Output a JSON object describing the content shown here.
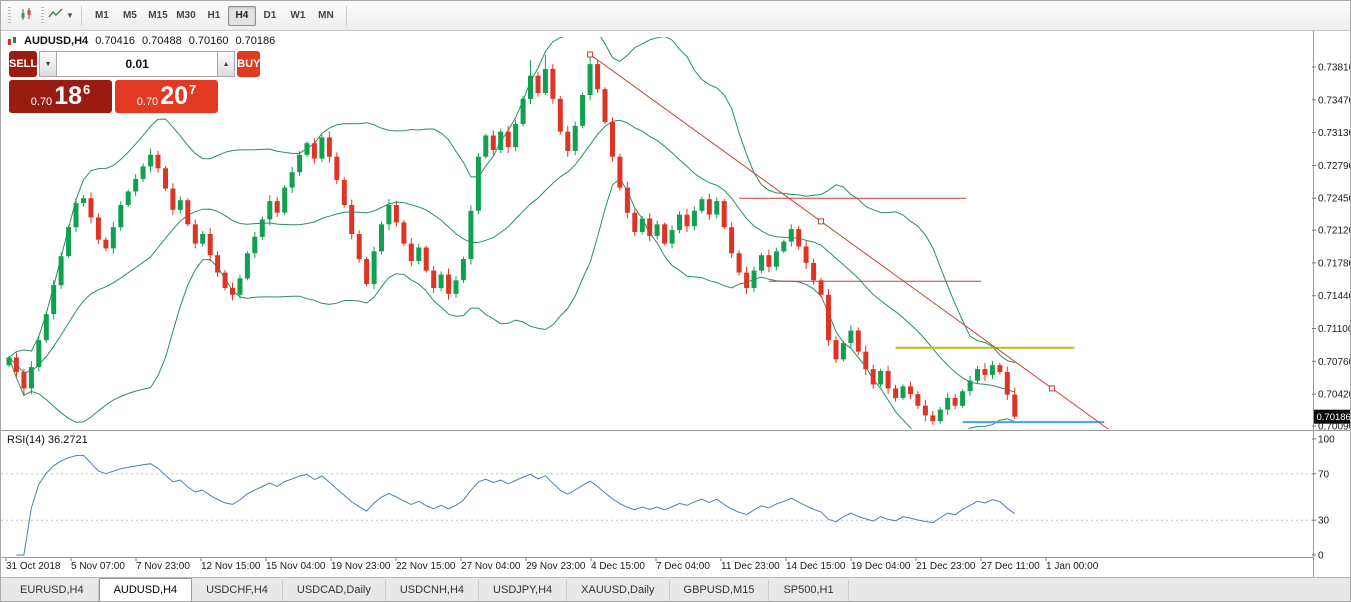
{
  "toolbar": {
    "timeframes": [
      "M1",
      "M5",
      "M15",
      "M30",
      "H1",
      "H4",
      "D1",
      "W1",
      "MN"
    ],
    "active_timeframe": "H4"
  },
  "symbol_strip": {
    "symbol": "AUDUSD,H4",
    "open": "0.70416",
    "high": "0.70488",
    "low": "0.70160",
    "close": "0.70186"
  },
  "one_click": {
    "sell_label": "SELL",
    "buy_label": "BUY",
    "volume": "0.01",
    "sell_price": {
      "big": "0.70",
      "mid": "18",
      "sup": "6",
      "full": "0.70186"
    },
    "buy_price": {
      "big": "0.70",
      "mid": "20",
      "sup": "7",
      "full": "0.70207"
    },
    "sell_color": "#9a1c10",
    "buy_color": "#e23a22"
  },
  "price_axis": {
    "labels": [
      "0.73810",
      "0.73470",
      "0.73130",
      "0.72790",
      "0.72450",
      "0.72120",
      "0.71780",
      "0.71440",
      "0.71100",
      "0.70760",
      "0.70420",
      "0.70090"
    ],
    "current": "0.70186"
  },
  "time_axis": {
    "labels": [
      "31 Oct 2018",
      "5 Nov 07:00",
      "7 Nov 23:00",
      "12 Nov 15:00",
      "15 Nov 04:00",
      "19 Nov 23:00",
      "22 Nov 15:00",
      "27 Nov 04:00",
      "29 Nov 23:00",
      "4 Dec 15:00",
      "7 Dec 04:00",
      "11 Dec 23:00",
      "14 Dec 15:00",
      "19 Dec 04:00",
      "21 Dec 23:00",
      "27 Dec 11:00",
      "1 Jan 00:00"
    ]
  },
  "rsi_panel": {
    "label": "RSI(14)",
    "value": "36.2721",
    "scale": [
      "100",
      "70",
      "30",
      "0"
    ]
  },
  "tabs": [
    {
      "label": "EURUSD,H4",
      "active": false
    },
    {
      "label": "AUDUSD,H4",
      "active": true
    },
    {
      "label": "USDCHF,H4",
      "active": false
    },
    {
      "label": "USDCAD,Daily",
      "active": false
    },
    {
      "label": "USDCNH,H4",
      "active": false
    },
    {
      "label": "USDJPY,H4",
      "active": false
    },
    {
      "label": "XAUUSD,Daily",
      "active": false
    },
    {
      "label": "GBPUSD,M15",
      "active": false
    },
    {
      "label": "SP500,H1",
      "active": false
    }
  ],
  "chart_data": {
    "type": "candlestick",
    "title": "AUDUSD,H4",
    "y_axis": {
      "top": 0.7381,
      "bottom": 0.7009
    },
    "first_open": 0.7072,
    "closes": [
      0.708,
      0.7065,
      0.7048,
      0.707,
      0.7098,
      0.7125,
      0.7155,
      0.7185,
      0.7215,
      0.724,
      0.7245,
      0.7225,
      0.7202,
      0.7193,
      0.7215,
      0.7238,
      0.7252,
      0.7265,
      0.7278,
      0.729,
      0.7276,
      0.7255,
      0.7233,
      0.7243,
      0.7218,
      0.7198,
      0.7208,
      0.7186,
      0.7168,
      0.7152,
      0.7145,
      0.7162,
      0.7188,
      0.7205,
      0.7223,
      0.7242,
      0.723,
      0.7256,
      0.7272,
      0.729,
      0.7302,
      0.7286,
      0.7308,
      0.7288,
      0.7264,
      0.7238,
      0.7208,
      0.7182,
      0.7156,
      0.719,
      0.7218,
      0.7238,
      0.722,
      0.7198,
      0.718,
      0.7194,
      0.717,
      0.7152,
      0.7166,
      0.7146,
      0.716,
      0.7182,
      0.7232,
      0.7288,
      0.731,
      0.7295,
      0.7314,
      0.7298,
      0.7322,
      0.7348,
      0.7372,
      0.7354,
      0.7379,
      0.7348,
      0.7314,
      0.7294,
      0.732,
      0.7352,
      0.7384,
      0.7358,
      0.7324,
      0.7288,
      0.7256,
      0.723,
      0.721,
      0.7224,
      0.7206,
      0.7218,
      0.7198,
      0.7212,
      0.7228,
      0.7216,
      0.7232,
      0.7244,
      0.7228,
      0.7242,
      0.7215,
      0.7188,
      0.7168,
      0.7152,
      0.717,
      0.7186,
      0.7174,
      0.719,
      0.72,
      0.7213,
      0.7195,
      0.7178,
      0.716,
      0.7145,
      0.7098,
      0.7078,
      0.7095,
      0.7108,
      0.7086,
      0.7068,
      0.7052,
      0.7066,
      0.7048,
      0.7038,
      0.705,
      0.7042,
      0.703,
      0.702,
      0.7014,
      0.7026,
      0.7038,
      0.703,
      0.7045,
      0.7056,
      0.7068,
      0.7062,
      0.7072,
      0.7065,
      0.70416,
      0.70186
    ],
    "overrides": {
      "2": {
        "l": 0.704
      },
      "70": {
        "h": 0.7388
      },
      "72": {
        "h": 0.7394
      },
      "78": {
        "h": 0.7394
      },
      "124": {
        "l": 0.701
      },
      "135": {
        "h": 0.70488,
        "l": 0.7016
      }
    },
    "colors": {
      "bull": "#10a04f",
      "bear": "#de3425"
    },
    "indicators": {
      "bollinger": {
        "period": 20,
        "deviation": 1.8,
        "color": "#27915f"
      },
      "rsi": {
        "period": 14,
        "color": "#4d7fba",
        "current": 36.2721
      }
    },
    "objects": {
      "trendline": {
        "p1": {
          "bar": 78,
          "price": 0.7394
        },
        "p2": {
          "bar": 140,
          "price": 0.7048
        },
        "ray": true,
        "selected": true,
        "color": "#c8403a"
      },
      "hlines": [
        {
          "price": 0.7245,
          "bar1": 98,
          "bar2": 128.5,
          "color": "#c8403a",
          "width": 1
        },
        {
          "price": 0.7159,
          "bar1": 102,
          "bar2": 130.5,
          "color": "#c8403a",
          "width": 1
        },
        {
          "price": 0.709,
          "bar1": 119,
          "bar2": 143,
          "color": "#b7bd1d",
          "width": 2
        },
        {
          "price": 0.7013,
          "bar1": 128,
          "bar2": 147,
          "color": "#46a5df",
          "width": 2
        }
      ]
    }
  }
}
